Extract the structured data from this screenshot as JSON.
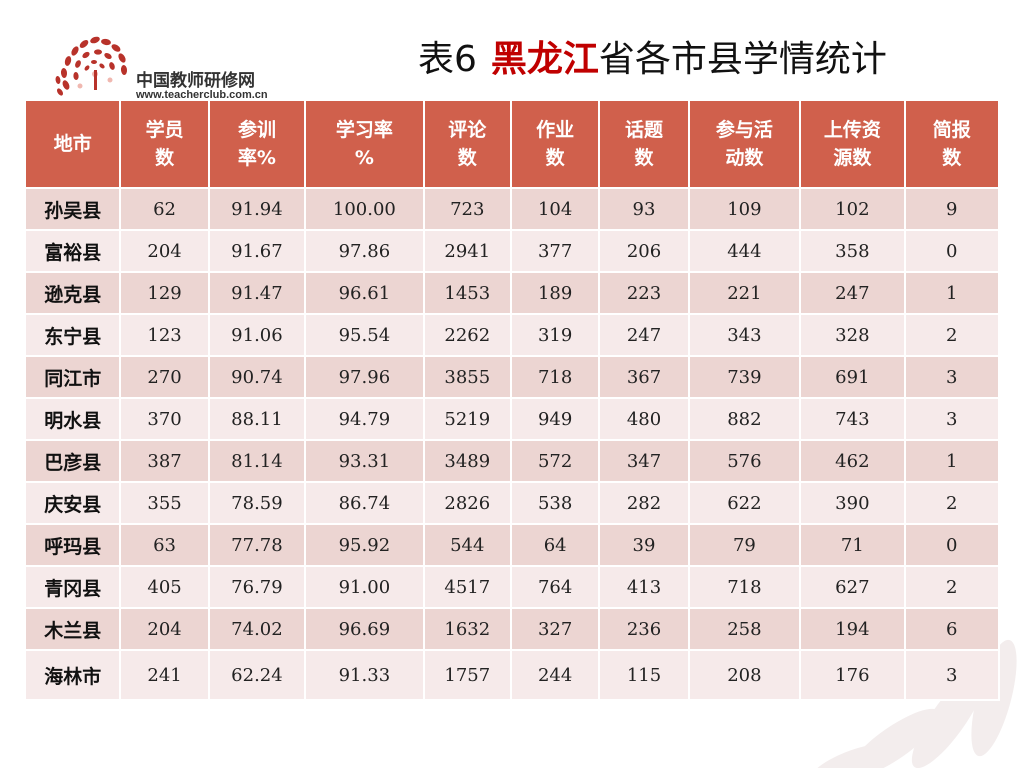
{
  "logo": {
    "name": "中国教师研修网",
    "url": "www.teacherclub.com.cn"
  },
  "title": {
    "prefix": "表6",
    "highlight": "黑龙江",
    "suffix": "省各市县学情统计"
  },
  "colors": {
    "header_bg": "#d0604c",
    "row_odd": "#ecd5d2",
    "row_even": "#f6eaea",
    "title_accent": "#c00000"
  },
  "table": {
    "headers": [
      [
        "地市"
      ],
      [
        "学员",
        "数"
      ],
      [
        "参训",
        "率%"
      ],
      [
        "学习率",
        "%"
      ],
      [
        "评论",
        "数"
      ],
      [
        "作业",
        "数"
      ],
      [
        "话题",
        "数"
      ],
      [
        "参与活",
        "动数"
      ],
      [
        "上传资",
        "源数"
      ],
      [
        "简报",
        "数"
      ]
    ],
    "rows": [
      [
        "孙吴县",
        "62",
        "91.94",
        "100.00",
        "723",
        "104",
        "93",
        "109",
        "102",
        "9"
      ],
      [
        "富裕县",
        "204",
        "91.67",
        "97.86",
        "2941",
        "377",
        "206",
        "444",
        "358",
        "0"
      ],
      [
        "逊克县",
        "129",
        "91.47",
        "96.61",
        "1453",
        "189",
        "223",
        "221",
        "247",
        "1"
      ],
      [
        "东宁县",
        "123",
        "91.06",
        "95.54",
        "2262",
        "319",
        "247",
        "343",
        "328",
        "2"
      ],
      [
        "同江市",
        "270",
        "90.74",
        "97.96",
        "3855",
        "718",
        "367",
        "739",
        "691",
        "3"
      ],
      [
        "明水县",
        "370",
        "88.11",
        "94.79",
        "5219",
        "949",
        "480",
        "882",
        "743",
        "3"
      ],
      [
        "巴彦县",
        "387",
        "81.14",
        "93.31",
        "3489",
        "572",
        "347",
        "576",
        "462",
        "1"
      ],
      [
        "庆安县",
        "355",
        "78.59",
        "86.74",
        "2826",
        "538",
        "282",
        "622",
        "390",
        "2"
      ],
      [
        "呼玛县",
        "63",
        "77.78",
        "95.92",
        "544",
        "64",
        "39",
        "79",
        "71",
        "0"
      ],
      [
        "青冈县",
        "405",
        "76.79",
        "91.00",
        "4517",
        "764",
        "413",
        "718",
        "627",
        "2"
      ],
      [
        "木兰县",
        "204",
        "74.02",
        "96.69",
        "1632",
        "327",
        "236",
        "258",
        "194",
        "6"
      ],
      [
        "海林市",
        "241",
        "62.24",
        "91.33",
        "1757",
        "244",
        "115",
        "208",
        "176",
        "3"
      ]
    ]
  }
}
